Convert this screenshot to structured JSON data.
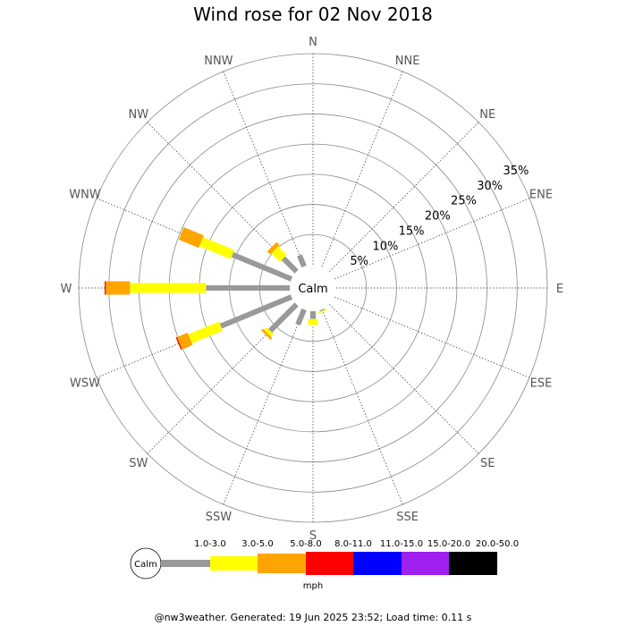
{
  "chart_data": {
    "type": "windrose",
    "title": "Wind rose for 02 Nov 2018",
    "calm_label": "Calm",
    "directions": [
      "N",
      "NNE",
      "NE",
      "ENE",
      "E",
      "ESE",
      "SE",
      "SSE",
      "S",
      "SSW",
      "SW",
      "WSW",
      "W",
      "WNW",
      "NW",
      "NNW"
    ],
    "ring_labels": [
      "5%",
      "10%",
      "15%",
      "20%",
      "25%",
      "30%",
      "35%"
    ],
    "ring_values": [
      5,
      10,
      15,
      20,
      25,
      30,
      35
    ],
    "rmax": 35,
    "speed_bins": [
      {
        "name": "1.0-3.0",
        "color": "#999999"
      },
      {
        "name": "3.0-5.0",
        "color": "#ffff00"
      },
      {
        "name": "5.0-8.0",
        "color": "#ffa500"
      },
      {
        "name": "8.0-11.0",
        "color": "#ff0000"
      },
      {
        "name": "11.0-15.0",
        "color": "#0000ff"
      },
      {
        "name": "15.0-20.0",
        "color": "#a020f0"
      },
      {
        "name": "20.0-50.0",
        "color": "#000000"
      }
    ],
    "unit": "mph",
    "series": [
      {
        "direction": "SSE",
        "values": [
          0.2,
          0.2,
          0,
          0,
          0,
          0,
          0
        ]
      },
      {
        "direction": "S",
        "values": [
          1.3,
          1.0,
          0,
          0,
          0,
          0,
          0
        ]
      },
      {
        "direction": "SSW",
        "values": [
          2.7,
          0,
          0,
          0,
          0,
          0,
          0
        ]
      },
      {
        "direction": "SW",
        "values": [
          6.2,
          0.6,
          0.4,
          0,
          0,
          0,
          0
        ]
      },
      {
        "direction": "WSW",
        "values": [
          12.7,
          5.5,
          1.9,
          0.2,
          0,
          0,
          0
        ]
      },
      {
        "direction": "W",
        "values": [
          13.9,
          12.6,
          4.0,
          0.2,
          0,
          0,
          0
        ]
      },
      {
        "direction": "WNW",
        "values": [
          10.6,
          5.6,
          3.6,
          0,
          0,
          0,
          0
        ]
      },
      {
        "direction": "NW",
        "values": [
          3.1,
          2.0,
          0.7,
          0,
          0,
          0,
          0
        ]
      },
      {
        "direction": "NNW",
        "values": [
          2.0,
          0,
          0,
          0,
          0,
          0,
          0
        ]
      }
    ]
  },
  "footer": "@nw3weather. Generated: 19 Jun 2025 23:52; Load time: 0.11 s"
}
